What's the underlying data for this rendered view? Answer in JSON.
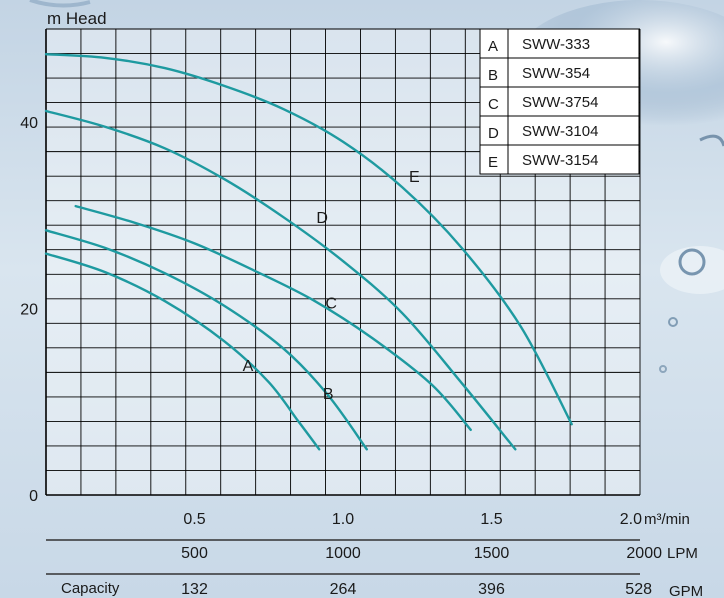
{
  "chart_data": {
    "type": "line",
    "ylabel": "m Head",
    "ylim": [
      0,
      50
    ],
    "yticks": [
      0,
      20,
      40
    ],
    "xlim": [
      0,
      2.0
    ],
    "xticks": [
      {
        "value": 0.5,
        "label": "0.5"
      },
      {
        "value": 1.0,
        "label": "1.0"
      },
      {
        "value": 1.5,
        "label": "1.5"
      },
      {
        "value": 2.0,
        "label": "2.0"
      }
    ],
    "x_unit": "m³/min",
    "lpm_axis": {
      "ticks": [
        {
          "value": 0.5,
          "label": "500"
        },
        {
          "value": 1.0,
          "label": "1000"
        },
        {
          "value": 1.5,
          "label": "1500"
        },
        {
          "value": 2.0,
          "label": "2000"
        }
      ],
      "unit": "LPM"
    },
    "gpm_axis": {
      "prefix": "Capacity",
      "ticks": [
        {
          "value": 0.5,
          "label": "132"
        },
        {
          "value": 1.0,
          "label": "264"
        },
        {
          "value": 1.5,
          "label": "396"
        },
        {
          "value": 2.0,
          "label": "528"
        }
      ],
      "unit": "GPM"
    },
    "grid": true,
    "legend_position": "top-right",
    "series": [
      {
        "letter": "A",
        "name": "SWW-333",
        "label_at": [
          0.68,
          13.3
        ],
        "points": [
          [
            0,
            25.9
          ],
          [
            0.2,
            23.9
          ],
          [
            0.4,
            20.8
          ],
          [
            0.6,
            16.5
          ],
          [
            0.75,
            12.1
          ],
          [
            0.85,
            7.9
          ],
          [
            0.92,
            4.9
          ]
        ]
      },
      {
        "letter": "B",
        "name": "SWW-354",
        "label_at": [
          0.95,
          10.3
        ],
        "points": [
          [
            0,
            28.4
          ],
          [
            0.2,
            26.5
          ],
          [
            0.4,
            23.8
          ],
          [
            0.6,
            20.3
          ],
          [
            0.8,
            15.7
          ],
          [
            0.95,
            10.7
          ],
          [
            1.08,
            4.9
          ]
        ]
      },
      {
        "letter": "C",
        "name": "SWW-3754",
        "label_at": [
          0.96,
          20.0
        ],
        "points": [
          [
            0.1,
            31.0
          ],
          [
            0.3,
            29.2
          ],
          [
            0.5,
            27.0
          ],
          [
            0.7,
            24.1
          ],
          [
            0.9,
            20.9
          ],
          [
            1.1,
            16.8
          ],
          [
            1.3,
            11.8
          ],
          [
            1.43,
            7.0
          ]
        ]
      },
      {
        "letter": "D",
        "name": "SWW-3104",
        "label_at": [
          0.93,
          29.2
        ],
        "points": [
          [
            0,
            41.2
          ],
          [
            0.2,
            39.5
          ],
          [
            0.4,
            37.2
          ],
          [
            0.6,
            33.9
          ],
          [
            0.8,
            29.8
          ],
          [
            1.0,
            25.1
          ],
          [
            1.2,
            19.5
          ],
          [
            1.4,
            12.0
          ],
          [
            1.58,
            4.9
          ]
        ]
      },
      {
        "letter": "E",
        "name": "SWW-3154",
        "label_at": [
          1.24,
          33.6
        ],
        "points": [
          [
            0,
            47.3
          ],
          [
            0.2,
            46.9
          ],
          [
            0.4,
            45.8
          ],
          [
            0.6,
            43.9
          ],
          [
            0.8,
            41.4
          ],
          [
            1.0,
            37.9
          ],
          [
            1.2,
            33.0
          ],
          [
            1.4,
            26.5
          ],
          [
            1.6,
            18.0
          ],
          [
            1.77,
            7.6
          ]
        ]
      }
    ],
    "line_color": "#1e9aa0",
    "axis_color": "#000000"
  }
}
